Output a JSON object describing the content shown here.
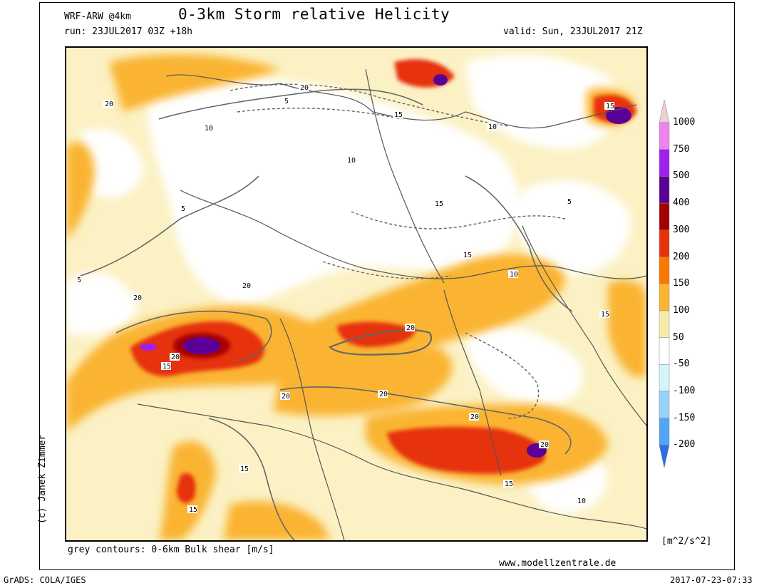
{
  "header": {
    "model": "WRF-ARW @4km",
    "title": "0-3km Storm relative Helicity",
    "run": "run: 23JUL2017 03Z +18h",
    "valid": "valid: Sun, 23JUL2017 21Z"
  },
  "credit": "(c) Janek Zimmer",
  "footer": {
    "contours_note": "grey contours: 0-6km Bulk shear [m/s]",
    "website": "www.modellzentrale.de",
    "grads": "GrADS: COLA/IGES",
    "timestamp": "2017-07-23-07:33"
  },
  "colorbar": {
    "unit": "[m^2/s^2]",
    "levels": [
      {
        "label": "1000",
        "color": "#ecd0d6"
      },
      {
        "label": "750",
        "color": "#ee82ee"
      },
      {
        "label": "500",
        "color": "#a020f0"
      },
      {
        "label": "400",
        "color": "#5a0096"
      },
      {
        "label": "300",
        "color": "#a50000"
      },
      {
        "label": "200",
        "color": "#e6320a"
      },
      {
        "label": "150",
        "color": "#fa7800"
      },
      {
        "label": "100",
        "color": "#fab432"
      },
      {
        "label": "50",
        "color": "#f8eaa8"
      },
      {
        "label": "-50",
        "color": "#ffffff"
      },
      {
        "label": "-100",
        "color": "#d2f5fa"
      },
      {
        "label": "-150",
        "color": "#96d2fa"
      },
      {
        "label": "-200",
        "color": "#50a5f5"
      }
    ],
    "bottom_color": "#2d6ee6"
  },
  "contour_labels": [
    "5",
    "10",
    "15",
    "20"
  ]
}
